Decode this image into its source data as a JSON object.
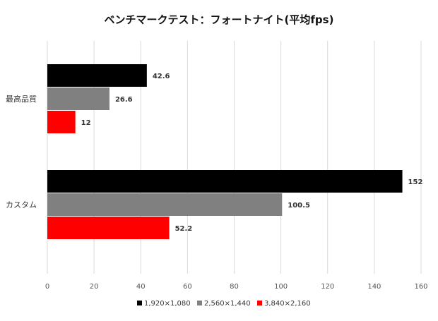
{
  "chart_data": {
    "type": "bar",
    "orientation": "horizontal",
    "title": "ベンチマークテスト：フォートナイト(平均fps)",
    "categories": [
      "最高品質",
      "カスタム"
    ],
    "series": [
      {
        "name": "1,920×1,080",
        "color": "#000000",
        "values": [
          42.6,
          152
        ],
        "labels": [
          "42.6",
          "152"
        ]
      },
      {
        "name": "2,560×1,440",
        "color": "#808080",
        "values": [
          26.6,
          100.5
        ],
        "labels": [
          "26.6",
          "100.5"
        ]
      },
      {
        "name": "3,840×2,160",
        "color": "#ff0000",
        "values": [
          12,
          52.2
        ],
        "labels": [
          "12",
          "52.2"
        ]
      }
    ],
    "xlim": [
      0,
      160
    ],
    "xticks": [
      "0",
      "20",
      "40",
      "60",
      "80",
      "100",
      "120",
      "140",
      "160"
    ],
    "grid": "vertical",
    "legend_position": "bottom"
  }
}
